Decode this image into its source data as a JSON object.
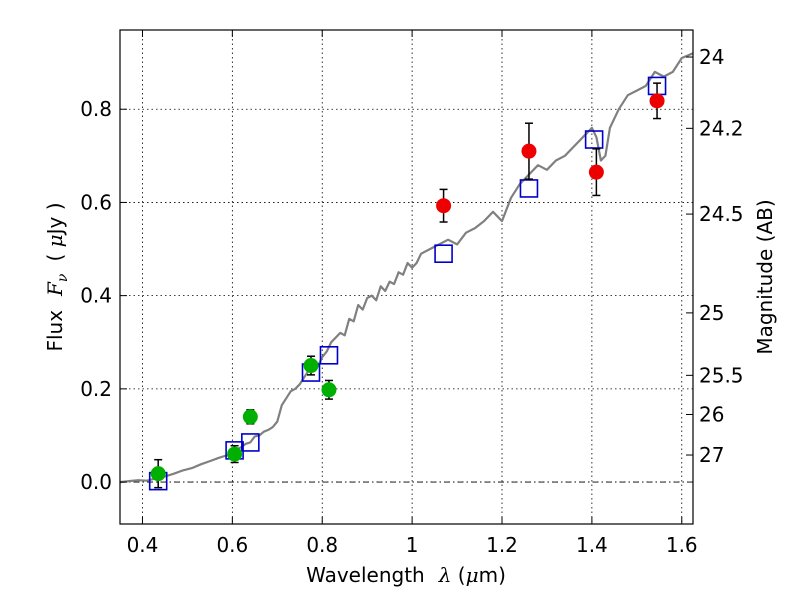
{
  "chart_data": {
    "type": "scatter",
    "xlabel": "Wavelength",
    "xlabel_symbol": "λ",
    "xlabel_unit_open": " (",
    "xlabel_unit_mu": "μ",
    "xlabel_unit_rest": "m)",
    "ylabel": "Flux",
    "ylabel_symbol": "F",
    "ylabel_subscript": "ν",
    "ylabel_unit_open": "( ",
    "ylabel_unit_mu": "μ",
    "ylabel_unit_rest": "Jy )",
    "y2label": "Magnitude (AB)",
    "xlim": [
      0.35,
      1.625
    ],
    "ylim": [
      -0.09,
      0.97
    ],
    "grid": true,
    "x_ticks": [
      0.4,
      0.6,
      0.8,
      1.0,
      1.2,
      1.4,
      1.6
    ],
    "x_tick_labels": [
      "0.4",
      "0.6",
      "0.8",
      "1",
      "1.2",
      "1.4",
      "1.6"
    ],
    "y_ticks": [
      0.0,
      0.2,
      0.4,
      0.6,
      0.8
    ],
    "y_tick_labels": [
      "0.0",
      "0.2",
      "0.4",
      "0.6",
      "0.8"
    ],
    "y2_ticks": [
      {
        "label": "24",
        "flux": 0.912
      },
      {
        "label": "24.2",
        "flux": 0.759
      },
      {
        "label": "24.5",
        "flux": 0.575
      },
      {
        "label": "25",
        "flux": 0.363
      },
      {
        "label": "25.5",
        "flux": 0.229
      },
      {
        "label": "26",
        "flux": 0.145
      },
      {
        "label": "27",
        "flux": 0.058
      }
    ],
    "series": [
      {
        "kind": "line",
        "color": "#808080",
        "x": [
          0.35,
          0.37,
          0.39,
          0.41,
          0.43,
          0.45,
          0.47,
          0.49,
          0.51,
          0.53,
          0.55,
          0.57,
          0.59,
          0.6,
          0.61,
          0.62,
          0.63,
          0.64,
          0.65,
          0.66,
          0.67,
          0.68,
          0.69,
          0.7,
          0.71,
          0.72,
          0.73,
          0.74,
          0.75,
          0.76,
          0.77,
          0.78,
          0.79,
          0.8,
          0.81,
          0.82,
          0.83,
          0.84,
          0.85,
          0.86,
          0.87,
          0.88,
          0.89,
          0.9,
          0.91,
          0.92,
          0.93,
          0.94,
          0.95,
          0.96,
          0.97,
          0.98,
          0.99,
          1.0,
          1.01,
          1.02,
          1.04,
          1.06,
          1.08,
          1.1,
          1.12,
          1.14,
          1.16,
          1.18,
          1.2,
          1.22,
          1.24,
          1.26,
          1.28,
          1.3,
          1.32,
          1.34,
          1.36,
          1.38,
          1.4,
          1.41,
          1.42,
          1.43,
          1.44,
          1.46,
          1.48,
          1.5,
          1.52,
          1.54,
          1.56,
          1.58,
          1.6,
          1.625
        ],
        "y": [
          0.0,
          0.002,
          0.004,
          0.003,
          0.008,
          0.012,
          0.018,
          0.025,
          0.03,
          0.038,
          0.045,
          0.052,
          0.058,
          0.062,
          0.07,
          0.075,
          0.082,
          0.085,
          0.098,
          0.1,
          0.108,
          0.112,
          0.118,
          0.13,
          0.165,
          0.18,
          0.195,
          0.2,
          0.21,
          0.225,
          0.24,
          0.255,
          0.248,
          0.268,
          0.28,
          0.3,
          0.31,
          0.32,
          0.315,
          0.35,
          0.345,
          0.38,
          0.37,
          0.395,
          0.4,
          0.39,
          0.42,
          0.41,
          0.43,
          0.425,
          0.45,
          0.445,
          0.47,
          0.46,
          0.47,
          0.49,
          0.5,
          0.51,
          0.52,
          0.51,
          0.535,
          0.545,
          0.56,
          0.58,
          0.56,
          0.61,
          0.64,
          0.66,
          0.68,
          0.67,
          0.69,
          0.7,
          0.72,
          0.74,
          0.76,
          0.74,
          0.69,
          0.7,
          0.76,
          0.8,
          0.83,
          0.84,
          0.85,
          0.88,
          0.87,
          0.88,
          0.91,
          0.92
        ]
      },
      {
        "kind": "squares",
        "color": "#0000cc",
        "x": [
          0.435,
          0.605,
          0.64,
          0.775,
          0.815,
          1.07,
          1.26,
          1.405,
          1.545
        ],
        "y": [
          0.002,
          0.068,
          0.085,
          0.235,
          0.272,
          0.49,
          0.63,
          0.735,
          0.85
        ]
      },
      {
        "kind": "points",
        "color": "#00b000",
        "x": [
          0.435,
          0.605,
          0.64,
          0.775,
          0.815
        ],
        "y": [
          0.018,
          0.06,
          0.14,
          0.25,
          0.198
        ],
        "err": [
          0.03,
          0.018,
          0.015,
          0.02,
          0.02
        ]
      },
      {
        "kind": "points",
        "color": "#ee0000",
        "x": [
          1.07,
          1.26,
          1.41,
          1.545
        ],
        "y": [
          0.593,
          0.71,
          0.665,
          0.818
        ],
        "err": [
          0.035,
          0.06,
          0.05,
          0.038
        ]
      }
    ],
    "zero_line": 0.0
  }
}
